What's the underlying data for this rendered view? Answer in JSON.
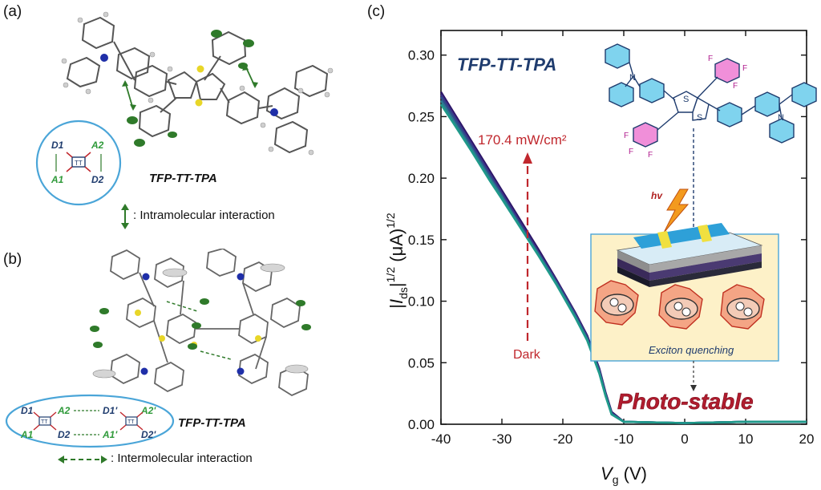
{
  "panel_a": {
    "label": "(a)",
    "molecule_name": "TFP-TT-TPA",
    "diagram": {
      "d1": "D1",
      "a2": "A2",
      "a1": "A1",
      "d2": "D2",
      "core": "TT"
    },
    "legend": ": Intramolecular interaction"
  },
  "panel_b": {
    "label": "(b)",
    "molecule_name": "TFP-TT-TPA",
    "diagram": {
      "d1": "D1",
      "a2": "A2",
      "d1p": "D1'",
      "a2p": "A2'",
      "a1": "A1",
      "d2": "D2",
      "a1p": "A1'",
      "d2p": "D2'",
      "core": "TT"
    },
    "legend": ": Intermolecular interaction"
  },
  "panel_c": {
    "label": "(c)",
    "inset_title": "TFP-TT-TPA",
    "intensity_label": "170.4 mW/cm²",
    "dark_label": "Dark",
    "hv_label": "hv",
    "exciton_label": "Exciton quenching",
    "photo_stable_label": "Photo-stable",
    "atom_labels": {
      "s": "S",
      "n": "N",
      "f": "F"
    },
    "colors": {
      "title": "#1f3c6e",
      "arrow": "#c0272d",
      "photo": "#b01c2e",
      "exciton_box": "#4aa5d8"
    }
  },
  "chart_data": {
    "type": "line",
    "xlabel_main": "V",
    "xlabel_sub": "g",
    "xlabel_unit": " (V)",
    "ylabel": "|Ids|1/2 (μA)1/2",
    "xlim": [
      -40,
      20
    ],
    "ylim": [
      0,
      0.32
    ],
    "x_ticks": [
      -40,
      -30,
      -20,
      -10,
      0,
      10,
      20
    ],
    "x_tick_labels": [
      "-40",
      "-30",
      "-20",
      "-10",
      "0",
      "10",
      "20"
    ],
    "y_ticks": [
      0,
      0.05,
      0.1,
      0.15,
      0.2,
      0.25,
      0.3
    ],
    "y_tick_labels": [
      "0.00",
      "0.05",
      "0.10",
      "0.15",
      "0.20",
      "0.25",
      "0.30"
    ],
    "series": [
      {
        "color": "#2b1466",
        "x": [
          -40,
          -38,
          -35,
          -32,
          -30,
          -27,
          -24,
          -21,
          -18,
          -16,
          -14,
          -13,
          -12,
          -10,
          0,
          10,
          20
        ],
        "y": [
          0.27,
          0.254,
          0.23,
          0.206,
          0.19,
          0.166,
          0.142,
          0.117,
          0.091,
          0.072,
          0.045,
          0.026,
          0.01,
          0.002,
          0.001,
          0.002,
          0.002
        ]
      },
      {
        "color": "#3c2f86",
        "x": [
          -40,
          -38,
          -35,
          -32,
          -30,
          -27,
          -24,
          -21,
          -18,
          -16,
          -14,
          -13,
          -12,
          -10,
          0,
          10,
          20
        ],
        "y": [
          0.268,
          0.252,
          0.228,
          0.204,
          0.188,
          0.164,
          0.14,
          0.116,
          0.09,
          0.071,
          0.044,
          0.025,
          0.009,
          0.002,
          0.001,
          0.002,
          0.002
        ]
      },
      {
        "color": "#2e4f8a",
        "x": [
          -40,
          -38,
          -35,
          -32,
          -30,
          -27,
          -24,
          -21,
          -18,
          -16,
          -14,
          -13,
          -12,
          -10,
          0,
          10,
          20
        ],
        "y": [
          0.266,
          0.25,
          0.226,
          0.202,
          0.186,
          0.162,
          0.139,
          0.115,
          0.089,
          0.07,
          0.043,
          0.024,
          0.009,
          0.002,
          0.001,
          0.002,
          0.002
        ]
      },
      {
        "color": "#2a7b8f",
        "x": [
          -40,
          -38,
          -35,
          -32,
          -30,
          -27,
          -24,
          -21,
          -18,
          -16,
          -14,
          -13,
          -12,
          -10,
          0,
          10,
          20
        ],
        "y": [
          0.263,
          0.247,
          0.224,
          0.2,
          0.185,
          0.161,
          0.138,
          0.114,
          0.088,
          0.069,
          0.042,
          0.024,
          0.008,
          0.002,
          0.001,
          0.002,
          0.002
        ]
      },
      {
        "color": "#1f9a8a",
        "x": [
          -40,
          -38,
          -35,
          -32,
          -30,
          -27,
          -24,
          -21,
          -18,
          -16,
          -14,
          -13,
          -12,
          -10,
          0,
          10,
          20
        ],
        "y": [
          0.26,
          0.245,
          0.222,
          0.198,
          0.183,
          0.16,
          0.137,
          0.113,
          0.087,
          0.068,
          0.041,
          0.023,
          0.008,
          0.002,
          0.001,
          0.002,
          0.002
        ]
      }
    ]
  }
}
